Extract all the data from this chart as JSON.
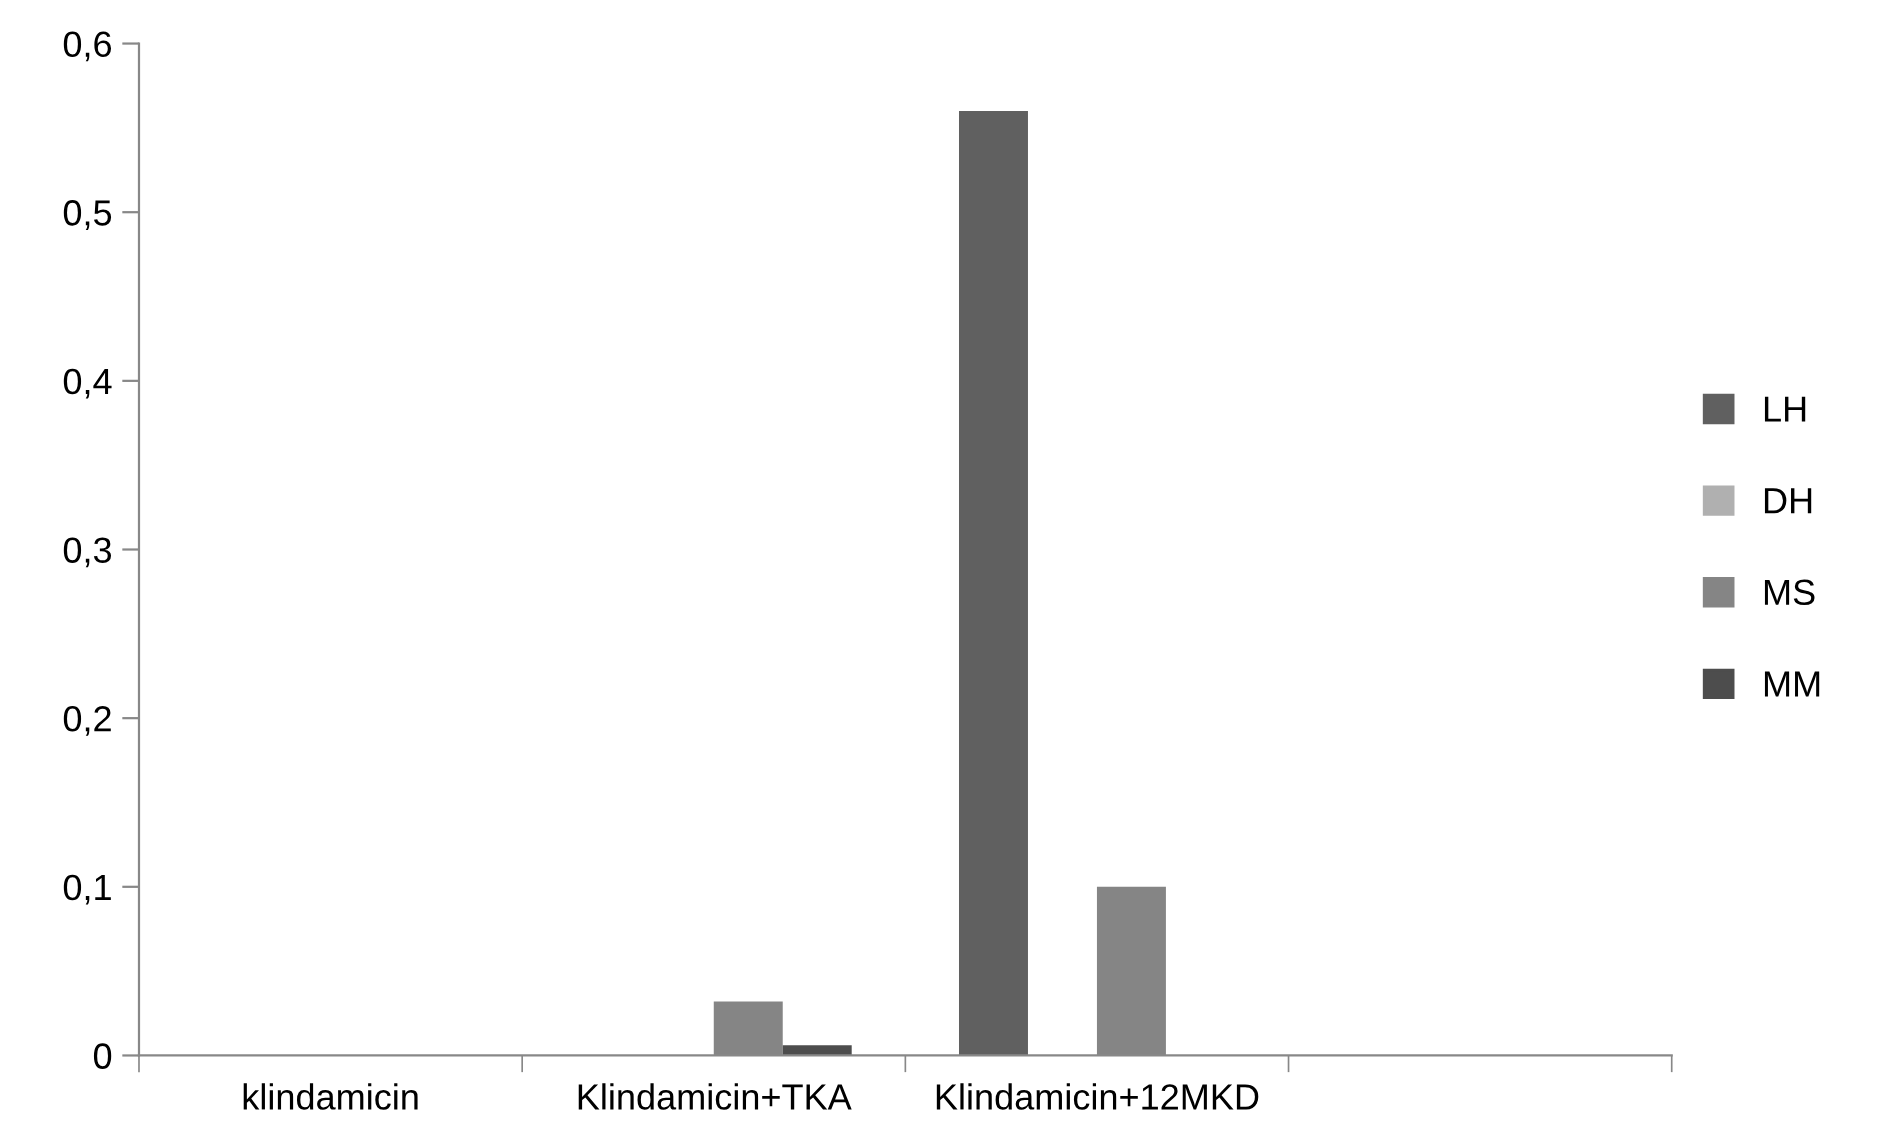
{
  "chart_data": {
    "type": "bar",
    "categories": [
      "klindamicin",
      "Klindamicin+TKA",
      "Klindamicin+12MKD",
      null
    ],
    "series": [
      {
        "name": "LH",
        "color": "#606060",
        "values": [
          0,
          0,
          0.56,
          0
        ]
      },
      {
        "name": "DH",
        "color": "#b0b0b0",
        "values": [
          0,
          0,
          0,
          0
        ]
      },
      {
        "name": "MS",
        "color": "#858585",
        "values": [
          0,
          0.032,
          0.1,
          0
        ]
      },
      {
        "name": "MM",
        "color": "#4d4d4d",
        "values": [
          0,
          0.006,
          0,
          0
        ]
      }
    ],
    "ylim": [
      0,
      0.6
    ],
    "yticks": [
      {
        "value": 0,
        "label": "0"
      },
      {
        "value": 0.1,
        "label": "0,1"
      },
      {
        "value": 0.2,
        "label": "0,2"
      },
      {
        "value": 0.3,
        "label": "0,3"
      },
      {
        "value": 0.4,
        "label": "0,4"
      },
      {
        "value": 0.5,
        "label": "0,5"
      },
      {
        "value": 0.6,
        "label": "0,6"
      }
    ],
    "grid": false,
    "legend": "right"
  }
}
